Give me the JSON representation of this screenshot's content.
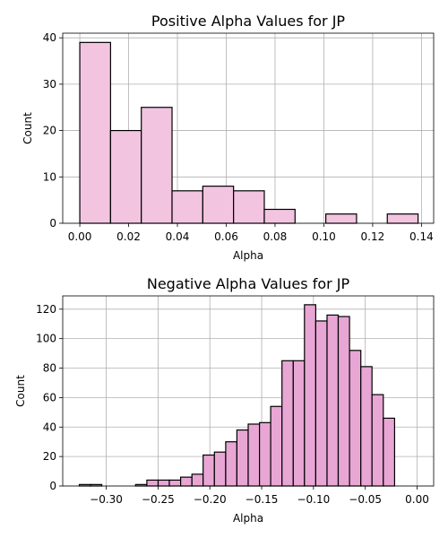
{
  "chart_data": [
    {
      "type": "bar",
      "title": "Positive Alpha Values for JP",
      "xlabel": "Alpha",
      "ylabel": "Count",
      "color": "#f2c4e0",
      "grid": true,
      "xlim": [
        -0.007,
        0.145
      ],
      "ylim": [
        0,
        41
      ],
      "xticks": [
        0.0,
        0.02,
        0.04,
        0.06,
        0.08,
        0.1,
        0.12,
        0.14
      ],
      "xtick_labels": [
        "0.00",
        "0.02",
        "0.04",
        "0.06",
        "0.08",
        "0.10",
        "0.12",
        "0.14"
      ],
      "yticks": [
        0,
        10,
        20,
        30,
        40
      ],
      "ytick_labels": [
        "0",
        "10",
        "20",
        "30",
        "40"
      ],
      "bins": [
        {
          "x0": 0.0,
          "x1": 0.0126,
          "count": 39
        },
        {
          "x0": 0.0126,
          "x1": 0.0252,
          "count": 20
        },
        {
          "x0": 0.0252,
          "x1": 0.0378,
          "count": 25
        },
        {
          "x0": 0.0378,
          "x1": 0.0504,
          "count": 7
        },
        {
          "x0": 0.0504,
          "x1": 0.063,
          "count": 8
        },
        {
          "x0": 0.063,
          "x1": 0.0756,
          "count": 7
        },
        {
          "x0": 0.0756,
          "x1": 0.0882,
          "count": 3
        },
        {
          "x0": 0.0882,
          "x1": 0.1008,
          "count": 0
        },
        {
          "x0": 0.1008,
          "x1": 0.1134,
          "count": 2
        },
        {
          "x0": 0.1134,
          "x1": 0.126,
          "count": 0
        },
        {
          "x0": 0.126,
          "x1": 0.1386,
          "count": 2
        }
      ]
    },
    {
      "type": "bar",
      "title": "Negative Alpha Values for JP",
      "xlabel": "Alpha",
      "ylabel": "Count",
      "color": "#e8a6d4",
      "grid": true,
      "xlim": [
        -0.342,
        0.016
      ],
      "ylim": [
        0,
        129
      ],
      "xticks": [
        -0.3,
        -0.25,
        -0.2,
        -0.15,
        -0.1,
        -0.05,
        0.0
      ],
      "xtick_labels": [
        "−0.30",
        "−0.25",
        "−0.20",
        "−0.15",
        "−0.10",
        "−0.05",
        "0.00"
      ],
      "yticks": [
        0,
        20,
        40,
        60,
        80,
        100,
        120
      ],
      "ytick_labels": [
        "0",
        "20",
        "40",
        "60",
        "80",
        "100",
        "120"
      ],
      "bins": [
        {
          "x0": -0.326,
          "x1": -0.3151,
          "count": 1
        },
        {
          "x0": -0.3151,
          "x1": -0.3043,
          "count": 1
        },
        {
          "x0": -0.3043,
          "x1": -0.2934,
          "count": 0
        },
        {
          "x0": -0.2934,
          "x1": -0.2825,
          "count": 0
        },
        {
          "x0": -0.2825,
          "x1": -0.2717,
          "count": 0
        },
        {
          "x0": -0.2717,
          "x1": -0.2608,
          "count": 1
        },
        {
          "x0": -0.2608,
          "x1": -0.2499,
          "count": 4
        },
        {
          "x0": -0.2499,
          "x1": -0.2391,
          "count": 4
        },
        {
          "x0": -0.2391,
          "x1": -0.2282,
          "count": 4
        },
        {
          "x0": -0.2282,
          "x1": -0.2173,
          "count": 6
        },
        {
          "x0": -0.2173,
          "x1": -0.2065,
          "count": 8
        },
        {
          "x0": -0.2065,
          "x1": -0.1956,
          "count": 21
        },
        {
          "x0": -0.1956,
          "x1": -0.1847,
          "count": 23
        },
        {
          "x0": -0.1847,
          "x1": -0.1739,
          "count": 30
        },
        {
          "x0": -0.1739,
          "x1": -0.163,
          "count": 38
        },
        {
          "x0": -0.163,
          "x1": -0.1521,
          "count": 42
        },
        {
          "x0": -0.1521,
          "x1": -0.1413,
          "count": 43
        },
        {
          "x0": -0.1413,
          "x1": -0.1304,
          "count": 54
        },
        {
          "x0": -0.1304,
          "x1": -0.1195,
          "count": 85
        },
        {
          "x0": -0.1195,
          "x1": -0.1087,
          "count": 85
        },
        {
          "x0": -0.1087,
          "x1": -0.0978,
          "count": 123
        },
        {
          "x0": -0.0978,
          "x1": -0.0869,
          "count": 112
        },
        {
          "x0": -0.0869,
          "x1": -0.0761,
          "count": 116
        },
        {
          "x0": -0.0761,
          "x1": -0.0652,
          "count": 115
        },
        {
          "x0": -0.0652,
          "x1": -0.0543,
          "count": 92
        },
        {
          "x0": -0.0543,
          "x1": -0.0435,
          "count": 81
        },
        {
          "x0": -0.0435,
          "x1": -0.0326,
          "count": 62
        },
        {
          "x0": -0.0326,
          "x1": -0.0217,
          "count": 46
        },
        {
          "x0": -0.0217,
          "x1": 0.0,
          "count": 0
        }
      ]
    }
  ]
}
